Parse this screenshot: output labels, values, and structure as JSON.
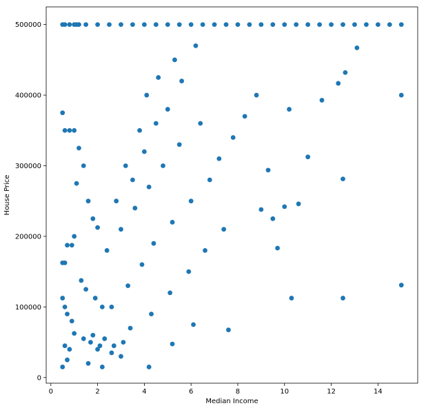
{
  "chart_data": {
    "type": "scatter",
    "title": "",
    "xlabel": "Median Income",
    "ylabel": "House Price",
    "xlim": [
      -0.2,
      15.7
    ],
    "ylim": [
      -8000,
      525000
    ],
    "xticks": [
      0,
      2,
      4,
      6,
      8,
      10,
      12,
      14
    ],
    "yticks": [
      0,
      100000,
      200000,
      300000,
      400000,
      500000
    ],
    "grid": false,
    "legend": "none",
    "marker_color": "#1f77b4",
    "series": [
      {
        "x": [
          0.5,
          0.6,
          0.8,
          1.0,
          1.1,
          1.2,
          1.5,
          2.0,
          2.5,
          3.0,
          3.5,
          4.0,
          4.5,
          5.0,
          5.5,
          6.0,
          6.5,
          7.0,
          7.5,
          8.0,
          8.5,
          9.0,
          9.5,
          10.0,
          10.5,
          11.0,
          11.5,
          12.0,
          12.5,
          13.0,
          13.5,
          14.0,
          14.5,
          15.0,
          0.5,
          0.6,
          0.8,
          1.0,
          0.5,
          0.6,
          0.7,
          0.9,
          1.0,
          0.5,
          0.6,
          0.7,
          0.9,
          0.5,
          0.7,
          0.6,
          0.8,
          1.1,
          1.2,
          1.4,
          1.6,
          1.8,
          2.0,
          1.3,
          1.5,
          1.9,
          2.2,
          1.0,
          1.4,
          1.7,
          2.1,
          3.2,
          3.8,
          4.1,
          4.6,
          5.3,
          2.8,
          3.5,
          4.0,
          4.5,
          5.0,
          5.6,
          6.2,
          2.4,
          3.0,
          3.6,
          4.2,
          4.8,
          5.5,
          6.4,
          2.6,
          3.3,
          3.9,
          4.4,
          5.2,
          6.0,
          6.8,
          7.2,
          7.8,
          8.3,
          8.8,
          3.4,
          4.3,
          5.1,
          5.9,
          6.6,
          7.4,
          5.2,
          6.1,
          7.6,
          1.6,
          2.2,
          3.0,
          4.2,
          2.0,
          2.6,
          3.1,
          1.8,
          2.3,
          2.7,
          9.3,
          9.7,
          10.0,
          10.3,
          10.6,
          11.0,
          11.6,
          12.3,
          12.5,
          12.6,
          13.1,
          15.0,
          15.0,
          10.2,
          12.5,
          9.0,
          9.5
        ],
        "y": [
          500001,
          500001,
          500001,
          500001,
          500001,
          500001,
          500001,
          500001,
          500001,
          500001,
          500001,
          500001,
          500001,
          500001,
          500001,
          500001,
          500001,
          500001,
          500001,
          500001,
          500001,
          500001,
          500001,
          500001,
          500001,
          500001,
          500001,
          500001,
          500001,
          500001,
          500001,
          500001,
          500001,
          500001,
          375000,
          350000,
          350000,
          350000,
          162500,
          162500,
          187500,
          187500,
          200000,
          112500,
          100000,
          90000,
          80000,
          15000,
          25000,
          45000,
          40000,
          275000,
          325000,
          300000,
          250000,
          225000,
          212500,
          137500,
          125000,
          112500,
          100000,
          62500,
          55000,
          50000,
          45000,
          300000,
          350000,
          400000,
          425000,
          450000,
          250000,
          280000,
          320000,
          360000,
          380000,
          420000,
          470000,
          180000,
          210000,
          240000,
          270000,
          300000,
          330000,
          360000,
          100000,
          130000,
          160000,
          190000,
          220000,
          250000,
          280000,
          310000,
          340000,
          370000,
          400000,
          70000,
          90000,
          120000,
          150000,
          180000,
          210000,
          47500,
          75000,
          67500,
          20000,
          15000,
          30000,
          15000,
          40000,
          35000,
          50000,
          60000,
          55000,
          45000,
          293800,
          183300,
          242000,
          112500,
          246000,
          312500,
          392800,
          416700,
          281300,
          432000,
          467000,
          400000,
          130900,
          380000,
          112500,
          238000,
          225000
        ]
      }
    ]
  }
}
